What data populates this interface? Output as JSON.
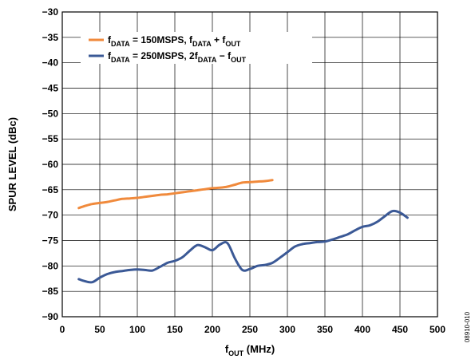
{
  "chart_data": {
    "type": "line",
    "xlabel": {
      "main": "f",
      "sub": "OUT",
      "rest": " (MHz)"
    },
    "ylabel": "SPUR LEVEL (dBc)",
    "xlim": [
      0,
      500
    ],
    "ylim": [
      -90,
      -30
    ],
    "xticks": [
      0,
      50,
      100,
      150,
      200,
      250,
      300,
      350,
      400,
      450,
      500
    ],
    "yticks": [
      -30,
      -35,
      -40,
      -45,
      -50,
      -55,
      -60,
      -65,
      -70,
      -75,
      -80,
      -85,
      -90
    ],
    "xtick_labels": [
      "0",
      "50",
      "100",
      "150",
      "200",
      "250",
      "300",
      "350",
      "400",
      "450",
      "500"
    ],
    "ytick_labels": [
      "−30",
      "−35",
      "−40",
      "−45",
      "−50",
      "−55",
      "−60",
      "−65",
      "−70",
      "−75",
      "−80",
      "−85",
      "−90"
    ],
    "grid": true,
    "legend_position": "top-left",
    "series": [
      {
        "color": "#F08A3C",
        "legend": [
          {
            "t": "f"
          },
          {
            "t": "DATA",
            "sub": true
          },
          {
            "t": " = 150MSPS, f"
          },
          {
            "t": "DATA",
            "sub": true
          },
          {
            "t": " + f"
          },
          {
            "t": "OUT",
            "sub": true
          }
        ],
        "x": [
          22,
          30,
          40,
          50,
          60,
          70,
          80,
          90,
          100,
          110,
          120,
          130,
          140,
          150,
          160,
          170,
          180,
          190,
          200,
          210,
          220,
          230,
          240,
          250,
          260,
          270,
          280
        ],
        "y": [
          -68.6,
          -68.2,
          -67.8,
          -67.6,
          -67.4,
          -67.1,
          -66.8,
          -66.7,
          -66.6,
          -66.4,
          -66.2,
          -66.0,
          -65.9,
          -65.7,
          -65.5,
          -65.3,
          -65.1,
          -64.9,
          -64.7,
          -64.6,
          -64.4,
          -64.0,
          -63.6,
          -63.5,
          -63.4,
          -63.3,
          -63.1
        ]
      },
      {
        "color": "#3B5996",
        "legend": [
          {
            "t": "f"
          },
          {
            "t": "DATA",
            "sub": true
          },
          {
            "t": " = 250MSPS, 2f"
          },
          {
            "t": "DATA",
            "sub": true
          },
          {
            "t": " − f"
          },
          {
            "t": "OUT",
            "sub": true
          }
        ],
        "x": [
          22,
          30,
          40,
          50,
          60,
          70,
          80,
          90,
          100,
          110,
          120,
          130,
          140,
          150,
          160,
          170,
          180,
          190,
          200,
          210,
          220,
          230,
          240,
          250,
          260,
          270,
          280,
          290,
          300,
          310,
          320,
          330,
          340,
          350,
          360,
          370,
          380,
          390,
          400,
          410,
          420,
          430,
          440,
          450,
          460
        ],
        "y": [
          -82.6,
          -83.0,
          -83.2,
          -82.3,
          -81.6,
          -81.2,
          -81.0,
          -80.8,
          -80.7,
          -80.8,
          -80.9,
          -80.2,
          -79.4,
          -79.0,
          -78.3,
          -77.0,
          -75.9,
          -76.3,
          -76.9,
          -75.8,
          -75.5,
          -78.5,
          -80.8,
          -80.6,
          -80.0,
          -79.8,
          -79.4,
          -78.4,
          -77.3,
          -76.2,
          -75.7,
          -75.5,
          -75.3,
          -75.2,
          -74.8,
          -74.3,
          -73.8,
          -73.0,
          -72.3,
          -72.0,
          -71.3,
          -70.2,
          -69.2,
          -69.5,
          -70.5
        ]
      }
    ],
    "figure_code": "08910-010"
  }
}
